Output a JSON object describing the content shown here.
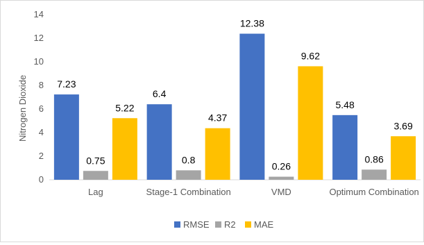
{
  "chart_data": {
    "type": "bar",
    "categories": [
      "Lag",
      "Stage-1 Combination",
      "VMD",
      "Optimum Combination"
    ],
    "series": [
      {
        "name": "RMSE",
        "values": [
          7.23,
          6.4,
          12.38,
          5.48
        ],
        "color": "#4472c4"
      },
      {
        "name": "R2",
        "values": [
          0.75,
          0.8,
          0.26,
          0.86
        ],
        "color": "#a5a5a5"
      },
      {
        "name": "MAE",
        "values": [
          5.22,
          4.37,
          9.62,
          3.69
        ],
        "color": "#ffc000"
      }
    ],
    "data_labels": [
      [
        "7.23",
        "0.75",
        "5.22"
      ],
      [
        "6.4",
        "0.8",
        "4.37"
      ],
      [
        "12.38",
        "0.26",
        "9.62"
      ],
      [
        "5.48",
        "0.86",
        "3.69"
      ]
    ],
    "ylabel": "Nitrogen Dioxide",
    "ylim": [
      0,
      14
    ],
    "yticks": [
      0,
      2,
      4,
      6,
      8,
      10,
      12,
      14
    ],
    "ytick_labels": [
      "0",
      "2",
      "4",
      "6",
      "8",
      "10",
      "12",
      "14"
    ],
    "grid": false,
    "legend_position": "bottom"
  }
}
